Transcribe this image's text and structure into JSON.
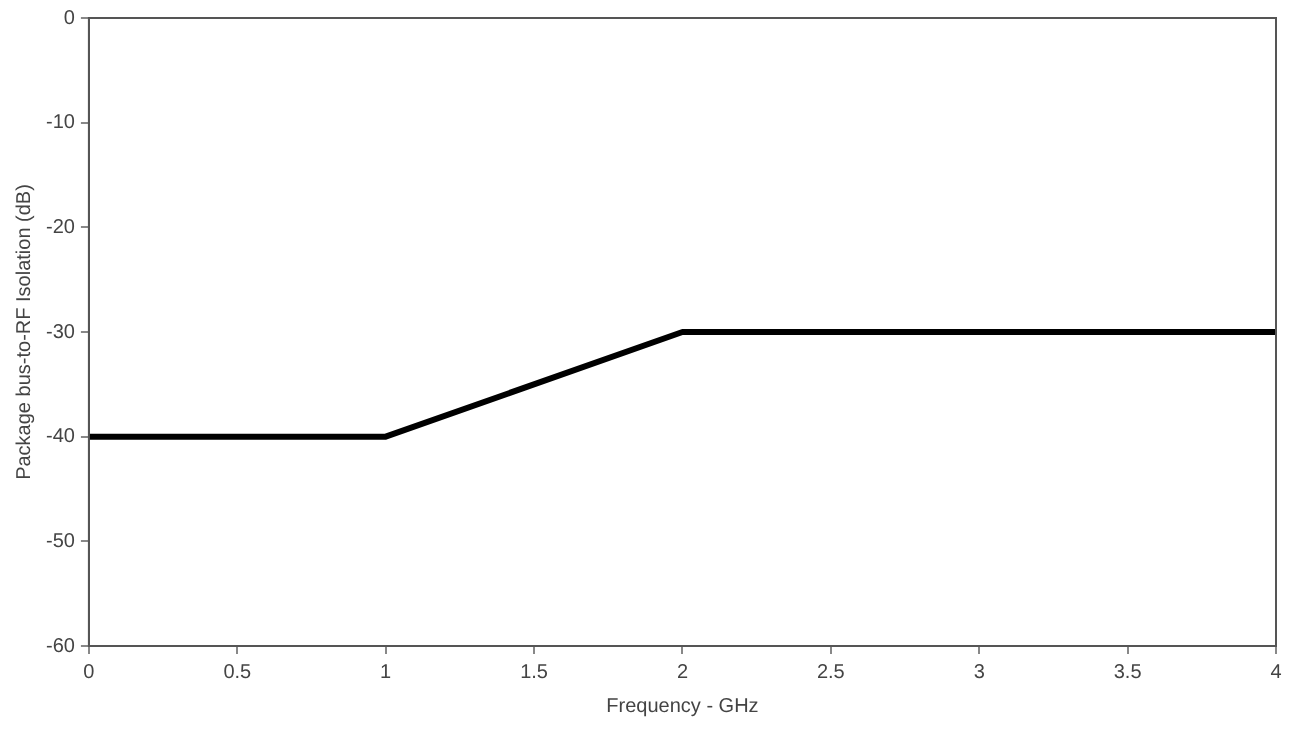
{
  "chart_data": {
    "type": "line",
    "xlabel": "Frequency - GHz",
    "ylabel": "Package bus-to-RF Isolation (dB)",
    "x": [
      0,
      1,
      2,
      4
    ],
    "series": [
      {
        "color": "#000000",
        "values": [
          -40,
          -40,
          -30,
          -30
        ]
      }
    ],
    "xlim": [
      0,
      4
    ],
    "xticks": [
      0,
      0.5,
      1,
      1.5,
      2,
      2.5,
      3,
      3.5,
      4
    ],
    "ylim": [
      -60,
      0
    ],
    "yticks": [
      -60,
      -50,
      -40,
      -30,
      -20,
      -10,
      0
    ],
    "grid": false,
    "legend": false,
    "marker": "none",
    "line_style": "solid"
  }
}
